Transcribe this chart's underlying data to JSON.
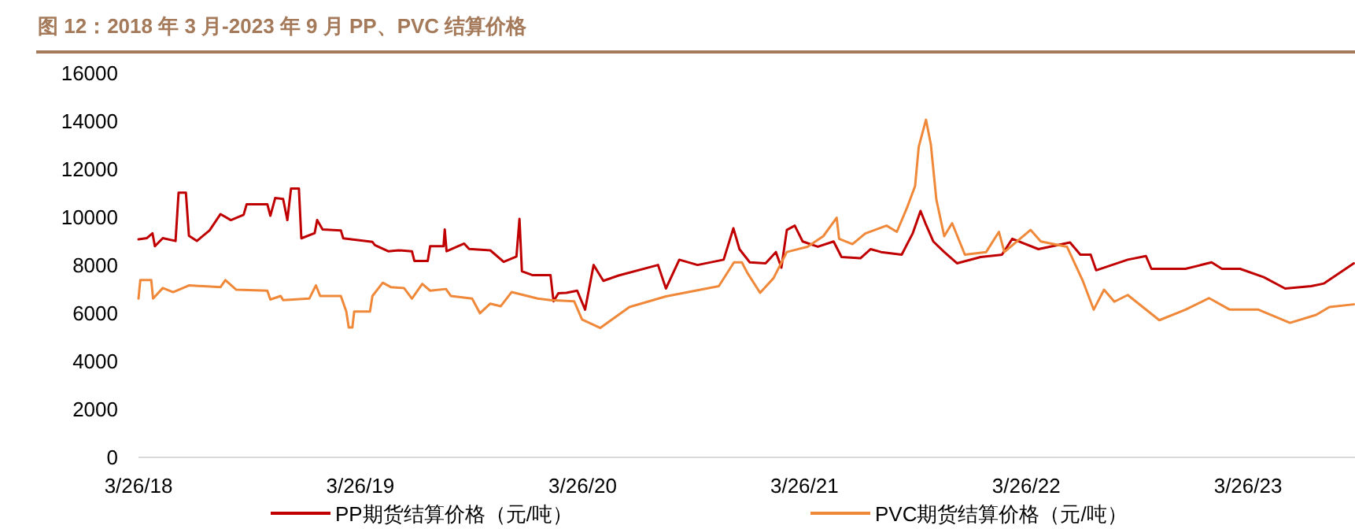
{
  "chart_data": {
    "type": "line",
    "title": "图 12：2018 年 3 月-2023 年 9 月 PP、PVC 结算价格",
    "legend": "bottom",
    "xlim": [
      "2018-03-26",
      "2023-09-18"
    ],
    "xticks": [
      {
        "value": "2018-03-26",
        "label": "3/26/18"
      },
      {
        "value": "2019-03-26",
        "label": "3/26/19"
      },
      {
        "value": "2020-03-26",
        "label": "3/26/20"
      },
      {
        "value": "2021-03-26",
        "label": "3/26/21"
      },
      {
        "value": "2022-03-26",
        "label": "3/26/22"
      },
      {
        "value": "2023-03-26",
        "label": "3/26/23"
      }
    ],
    "ylim": [
      0,
      16000
    ],
    "yticks": [
      0,
      2000,
      4000,
      6000,
      8000,
      10000,
      12000,
      14000,
      16000
    ],
    "series": [
      {
        "name": "PP期货结算价格（元/吨）",
        "color": "#c00000",
        "x": [
          "2018-03-26",
          "2018-04-09",
          "2018-04-18",
          "2018-04-22",
          "2018-05-05",
          "2018-05-26",
          "2018-05-31",
          "2018-06-12",
          "2018-06-17",
          "2018-06-30",
          "2018-07-21",
          "2018-08-08",
          "2018-08-25",
          "2018-09-15",
          "2018-09-20",
          "2018-10-24",
          "2018-10-29",
          "2018-11-06",
          "2018-11-19",
          "2018-11-26",
          "2018-12-02",
          "2018-12-15",
          "2018-12-19",
          "2019-01-10",
          "2019-01-14",
          "2019-01-23",
          "2019-02-22",
          "2019-02-26",
          "2019-04-15",
          "2019-04-19",
          "2019-05-11",
          "2019-05-28",
          "2019-06-19",
          "2019-06-23",
          "2019-07-15",
          "2019-07-19",
          "2019-08-10",
          "2019-08-12",
          "2019-08-15",
          "2019-09-13",
          "2019-09-21",
          "2019-10-26",
          "2019-11-17",
          "2019-12-08",
          "2019-12-13",
          "2019-12-17",
          "2020-01-03",
          "2020-02-02",
          "2020-02-07",
          "2020-02-15",
          "2020-02-28",
          "2020-03-17",
          "2020-03-30",
          "2020-04-13",
          "2020-04-29",
          "2020-05-24",
          "2020-07-28",
          "2020-08-10",
          "2020-09-01",
          "2020-10-01",
          "2020-11-13",
          "2020-11-29",
          "2020-12-09",
          "2020-12-26",
          "2021-01-21",
          "2021-02-07",
          "2021-02-16",
          "2021-02-25",
          "2021-03-10",
          "2021-03-23",
          "2021-04-17",
          "2021-05-13",
          "2021-05-26",
          "2021-06-26",
          "2021-07-13",
          "2021-07-30",
          "2021-09-02",
          "2021-09-20",
          "2021-10-03",
          "2021-10-11",
          "2021-10-24",
          "2021-11-11",
          "2021-12-02",
          "2022-01-10",
          "2022-02-14",
          "2022-03-03",
          "2022-04-15",
          "2022-06-06",
          "2022-06-23",
          "2022-07-10",
          "2022-07-19",
          "2022-09-09",
          "2022-10-09",
          "2022-10-18",
          "2022-12-13",
          "2023-01-25",
          "2023-02-11",
          "2023-03-13",
          "2023-04-21",
          "2023-05-26",
          "2023-07-08",
          "2023-07-29",
          "2023-09-16"
        ],
        "values": [
          9050,
          9100,
          9300,
          8760,
          9100,
          8980,
          10990,
          10990,
          9200,
          8980,
          9420,
          10100,
          9850,
          10070,
          10510,
          10510,
          10030,
          10770,
          10730,
          9850,
          11160,
          11160,
          9090,
          9310,
          9850,
          9460,
          9420,
          9090,
          8940,
          8810,
          8550,
          8590,
          8550,
          8150,
          8150,
          8760,
          8760,
          9460,
          8550,
          8870,
          8650,
          8590,
          8110,
          8330,
          9900,
          7720,
          7560,
          7560,
          6470,
          6800,
          6820,
          6910,
          6120,
          7980,
          7320,
          7540,
          7980,
          7000,
          8200,
          7980,
          8200,
          9510,
          8640,
          8090,
          8050,
          8520,
          7870,
          9440,
          9620,
          8960,
          8740,
          8960,
          8310,
          8260,
          8640,
          8520,
          8410,
          9290,
          10230,
          9720,
          8960,
          8520,
          8050,
          8310,
          8410,
          9070,
          8640,
          8920,
          8410,
          8410,
          7760,
          8200,
          8350,
          7820,
          7820,
          8090,
          7820,
          7820,
          7470,
          7000,
          7100,
          7210,
          8050
        ]
      },
      {
        "name": "PVC期货结算价格（元/吨）",
        "color": "#f0883a",
        "x": [
          "2018-03-26",
          "2018-03-29",
          "2018-04-16",
          "2018-04-19",
          "2018-05-05",
          "2018-05-22",
          "2018-06-17",
          "2018-08-08",
          "2018-08-16",
          "2018-09-03",
          "2018-10-24",
          "2018-10-29",
          "2018-11-15",
          "2018-11-19",
          "2019-01-01",
          "2019-01-12",
          "2019-01-19",
          "2019-02-22",
          "2019-03-03",
          "2019-03-07",
          "2019-03-13",
          "2019-03-16",
          "2019-04-11",
          "2019-04-15",
          "2019-05-02",
          "2019-05-15",
          "2019-06-06",
          "2019-06-19",
          "2019-07-06",
          "2019-07-19",
          "2019-08-14",
          "2019-08-22",
          "2019-09-26",
          "2019-10-09",
          "2019-10-26",
          "2019-11-12",
          "2019-11-30",
          "2020-01-12",
          "2020-02-02",
          "2020-03-12",
          "2020-03-25",
          "2020-04-24",
          "2020-06-11",
          "2020-08-10",
          "2020-11-05",
          "2020-11-30",
          "2020-12-13",
          "2020-12-22",
          "2021-01-12",
          "2021-02-03",
          "2021-02-25",
          "2021-03-31",
          "2021-04-26",
          "2021-05-18",
          "2021-05-22",
          "2021-06-13",
          "2021-07-04",
          "2021-08-08",
          "2021-08-25",
          "2021-09-11",
          "2021-09-24",
          "2021-09-30",
          "2021-10-12",
          "2021-10-20",
          "2021-10-29",
          "2021-11-11",
          "2021-11-24",
          "2021-12-15",
          "2022-01-19",
          "2022-02-09",
          "2022-02-18",
          "2022-04-02",
          "2022-04-19",
          "2022-06-01",
          "2022-06-27",
          "2022-07-15",
          "2022-08-01",
          "2022-08-18",
          "2022-09-09",
          "2022-10-31",
          "2022-12-13",
          "2023-01-21",
          "2023-02-24",
          "2023-04-12",
          "2023-06-03",
          "2023-07-16",
          "2023-08-07",
          "2023-09-16"
        ],
        "values": [
          6580,
          7350,
          7350,
          6580,
          7020,
          6850,
          7130,
          7060,
          7350,
          6950,
          6910,
          6540,
          6690,
          6520,
          6580,
          7130,
          6690,
          6690,
          6040,
          5380,
          5380,
          6040,
          6040,
          6690,
          7240,
          7060,
          7020,
          6580,
          7190,
          6910,
          6980,
          6690,
          6580,
          5970,
          6370,
          6260,
          6850,
          6580,
          6520,
          6470,
          5710,
          5360,
          6230,
          6670,
          7100,
          8090,
          8090,
          7650,
          6820,
          7430,
          8520,
          8740,
          9180,
          9950,
          9070,
          8850,
          9290,
          9620,
          9360,
          10380,
          11260,
          12900,
          14030,
          13000,
          10710,
          9180,
          9720,
          8410,
          8520,
          9360,
          8520,
          9440,
          8960,
          8740,
          7320,
          6120,
          6950,
          6450,
          6730,
          5680,
          6120,
          6600,
          6120,
          6120,
          5570,
          5900,
          6230,
          6340
        ]
      }
    ]
  }
}
